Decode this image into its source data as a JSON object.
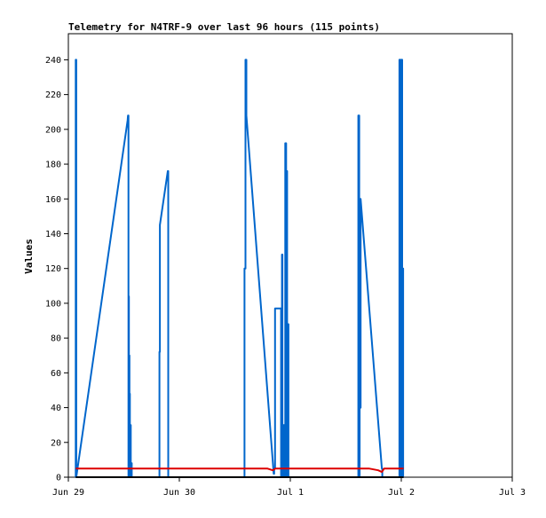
{
  "chart_data": {
    "type": "line",
    "title": "Telemetry for N4TRF-9 over last 96 hours (115 points)",
    "xlabel": "",
    "ylabel": "Values",
    "x_range_hours": [
      0,
      96
    ],
    "ylim": [
      0,
      255
    ],
    "y_ticks": [
      0,
      20,
      40,
      60,
      80,
      100,
      120,
      140,
      160,
      180,
      200,
      220,
      240
    ],
    "x_ticks": [
      {
        "label": "Jun 29",
        "hour": 0
      },
      {
        "label": "Jun 30",
        "hour": 24
      },
      {
        "label": "Jul 1",
        "hour": 48
      },
      {
        "label": "Jul 2",
        "hour": 72
      },
      {
        "label": "Jul 3",
        "hour": 96
      }
    ],
    "grid": false,
    "series": [
      {
        "color": "#0066cc",
        "points": [
          [
            1.6,
            0
          ],
          [
            1.6,
            240
          ],
          [
            1.7,
            240
          ],
          [
            1.7,
            0
          ],
          [
            12.8,
            205
          ],
          [
            12.9,
            208
          ],
          [
            13.0,
            208
          ],
          [
            13.0,
            0
          ],
          [
            13.1,
            104
          ],
          [
            13.1,
            0
          ],
          [
            13.2,
            70
          ],
          [
            13.2,
            0
          ],
          [
            13.3,
            48
          ],
          [
            13.3,
            0
          ],
          [
            13.5,
            30
          ],
          [
            13.5,
            0
          ],
          [
            13.7,
            8
          ],
          [
            13.7,
            0
          ],
          [
            13.7,
            5
          ],
          [
            13.7,
            0
          ],
          [
            19.7,
            0
          ],
          [
            19.7,
            72
          ],
          [
            19.8,
            72
          ],
          [
            19.8,
            145
          ],
          [
            21.5,
            176
          ],
          [
            21.6,
            176
          ],
          [
            21.6,
            0
          ],
          [
            38.1,
            0
          ],
          [
            38.1,
            120
          ],
          [
            38.3,
            120
          ],
          [
            38.3,
            240
          ],
          [
            38.5,
            240
          ],
          [
            38.5,
            208
          ],
          [
            44.4,
            2
          ],
          [
            44.5,
            2
          ],
          [
            44.5,
            5
          ],
          [
            44.7,
            5
          ],
          [
            44.7,
            97
          ],
          [
            46.0,
            97
          ],
          [
            46.0,
            0
          ],
          [
            46.2,
            0
          ],
          [
            46.2,
            128
          ],
          [
            46.3,
            128
          ],
          [
            46.3,
            0
          ],
          [
            46.5,
            0
          ],
          [
            46.5,
            30
          ],
          [
            46.7,
            30
          ],
          [
            46.7,
            0
          ],
          [
            46.9,
            0
          ],
          [
            46.9,
            192
          ],
          [
            47.1,
            192
          ],
          [
            47.1,
            0
          ],
          [
            47.2,
            0
          ],
          [
            47.2,
            176
          ],
          [
            47.3,
            176
          ],
          [
            47.3,
            0
          ],
          [
            47.5,
            0
          ],
          [
            47.5,
            88
          ],
          [
            47.6,
            88
          ],
          [
            47.6,
            0
          ],
          [
            62.7,
            0
          ],
          [
            62.7,
            208
          ],
          [
            62.9,
            208
          ],
          [
            62.9,
            0
          ],
          [
            63.0,
            0
          ],
          [
            63.0,
            120
          ],
          [
            63.1,
            120
          ],
          [
            63.1,
            40
          ],
          [
            63.2,
            40
          ],
          [
            63.2,
            160
          ],
          [
            67.8,
            5
          ],
          [
            67.9,
            5
          ],
          [
            67.9,
            0
          ],
          [
            71.6,
            0
          ],
          [
            71.6,
            240
          ],
          [
            71.8,
            240
          ],
          [
            71.8,
            0
          ],
          [
            72.0,
            0
          ],
          [
            72.0,
            240
          ],
          [
            72.2,
            240
          ],
          [
            72.2,
            0
          ],
          [
            72.3,
            0
          ],
          [
            72.3,
            120
          ],
          [
            72.4,
            120
          ],
          [
            72.4,
            0
          ]
        ]
      },
      {
        "color": "#dd0000",
        "points": [
          [
            1.6,
            5
          ],
          [
            43.0,
            5
          ],
          [
            44.2,
            4
          ],
          [
            44.8,
            5
          ],
          [
            65.0,
            5
          ],
          [
            67.0,
            4
          ],
          [
            67.8,
            3
          ],
          [
            68.3,
            5
          ],
          [
            72.5,
            5
          ]
        ]
      },
      {
        "color": "#000000",
        "points": [
          [
            1.6,
            0
          ],
          [
            72.5,
            0
          ]
        ]
      }
    ]
  }
}
